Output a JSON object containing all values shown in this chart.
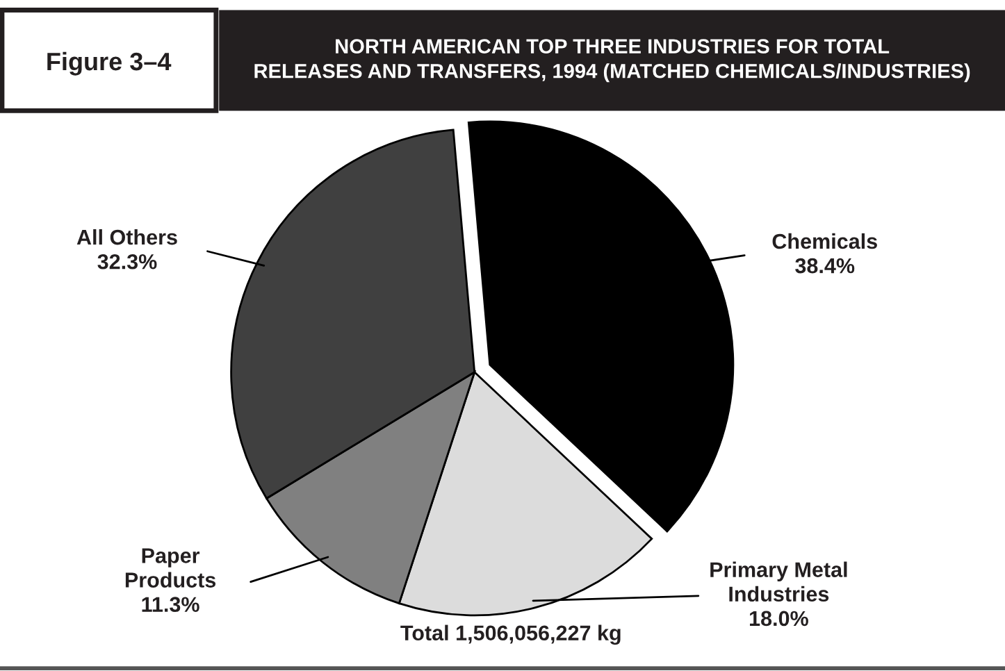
{
  "chart_data": {
    "type": "pie",
    "title": "NORTH AMERICAN TOP THREE INDUSTRIES FOR TOTAL\nRELEASES AND TRANSFERS, 1994 (MATCHED CHEMICALS/INDUSTRIES)",
    "categories": [
      "Chemicals",
      "Primary Metal\nIndustries",
      "Paper\nProducts",
      "All Others"
    ],
    "values": [
      38.4,
      18.0,
      11.3,
      32.3
    ],
    "value_labels": [
      "38.4%",
      "18.0%",
      "11.3%",
      "32.3%"
    ],
    "colors": [
      "#000000",
      "#dcdcdc",
      "#808080",
      "#404040"
    ],
    "annotations": [
      "Figure 3–4",
      "Total 1,506,056,227 kg"
    ]
  }
}
